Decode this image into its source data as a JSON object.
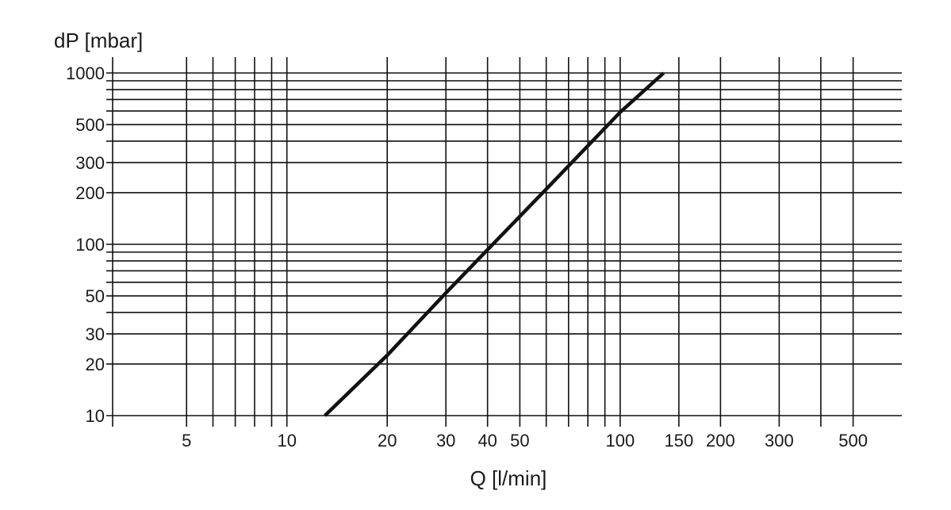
{
  "chart_data": {
    "type": "line",
    "title": "",
    "xlabel": "Q [l/min]",
    "ylabel": "dP [mbar]",
    "xscale": "log",
    "yscale": "log",
    "xlim": [
      3,
      700
    ],
    "ylim": [
      10,
      1000
    ],
    "grid": true,
    "x_tick_labels": [
      {
        "value": 5,
        "label": "5"
      },
      {
        "value": 10,
        "label": "10"
      },
      {
        "value": 20,
        "label": "20"
      },
      {
        "value": 30,
        "label": "30"
      },
      {
        "value": 40,
        "label": "40"
      },
      {
        "value": 50,
        "label": "50"
      },
      {
        "value": 100,
        "label": "100"
      },
      {
        "value": 150,
        "label": "150"
      },
      {
        "value": 200,
        "label": "200"
      },
      {
        "value": 300,
        "label": "300"
      },
      {
        "value": 500,
        "label": "500"
      }
    ],
    "y_tick_labels": [
      {
        "value": 10,
        "label": "10"
      },
      {
        "value": 20,
        "label": "20"
      },
      {
        "value": 30,
        "label": "30"
      },
      {
        "value": 50,
        "label": "50"
      },
      {
        "value": 100,
        "label": "100"
      },
      {
        "value": 200,
        "label": "200"
      },
      {
        "value": 300,
        "label": "300"
      },
      {
        "value": 500,
        "label": "500"
      },
      {
        "value": 1000,
        "label": "1000"
      }
    ],
    "x_gridlines": [
      5,
      6,
      7,
      8,
      9,
      10,
      20,
      30,
      40,
      50,
      60,
      70,
      80,
      90,
      100,
      150,
      200,
      300,
      400,
      500
    ],
    "y_gridlines": [
      10,
      20,
      30,
      40,
      50,
      60,
      70,
      80,
      90,
      100,
      200,
      300,
      400,
      500,
      600,
      700,
      800,
      900,
      1000
    ],
    "series": [
      {
        "x": [
          13,
          20,
          30,
          40,
          60,
          100,
          135
        ],
        "y": [
          10,
          22.5,
          52,
          93,
          210,
          590,
          1000
        ]
      }
    ]
  }
}
